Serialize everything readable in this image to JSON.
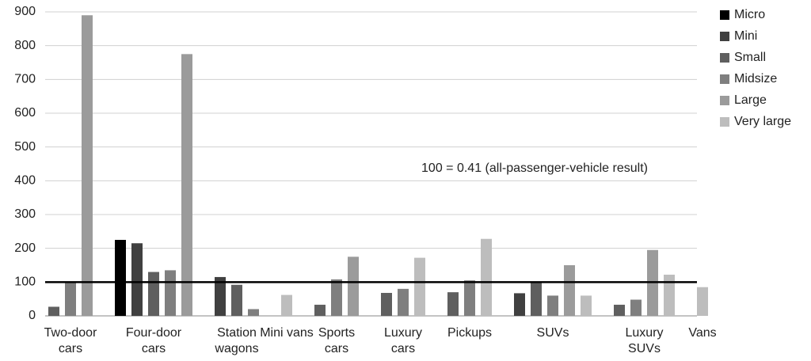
{
  "chart_data": {
    "type": "bar",
    "categories": [
      [
        "Two-door",
        "cars"
      ],
      [
        "Four-door",
        "cars"
      ],
      [
        "Station",
        "wagons"
      ],
      [
        "Mini vans"
      ],
      [
        "Sports",
        "cars"
      ],
      [
        "Luxury",
        "cars"
      ],
      [
        "Pickups"
      ],
      [
        "SUVs"
      ],
      [
        "Luxury",
        "SUVs"
      ],
      [
        "Vans"
      ]
    ],
    "series": [
      {
        "name": "Micro",
        "color": "#000000",
        "values": [
          null,
          225,
          null,
          null,
          null,
          null,
          null,
          null,
          null,
          null
        ]
      },
      {
        "name": "Mini",
        "color": "#404040",
        "values": [
          null,
          215,
          115,
          null,
          null,
          null,
          null,
          67,
          null,
          null
        ]
      },
      {
        "name": "Small",
        "color": "#5f5f5f",
        "values": [
          27,
          130,
          92,
          null,
          33,
          68,
          70,
          100,
          33,
          null
        ]
      },
      {
        "name": "Midsize",
        "color": "#7f7f7f",
        "values": [
          98,
          135,
          20,
          null,
          108,
          80,
          105,
          60,
          48,
          null
        ]
      },
      {
        "name": "Large",
        "color": "#9b9b9b",
        "values": [
          890,
          775,
          null,
          null,
          175,
          null,
          null,
          150,
          195,
          null
        ]
      },
      {
        "name": "Very large",
        "color": "#bdbdbd",
        "values": [
          null,
          null,
          null,
          62,
          null,
          172,
          228,
          60,
          122,
          85
        ]
      }
    ],
    "ylim": [
      0,
      900
    ],
    "yticks": [
      0,
      100,
      200,
      300,
      400,
      500,
      600,
      700,
      800,
      900
    ],
    "grid": true,
    "reference_line": 100,
    "annotation": "100 = 0.41 (all-passenger-vehicle result)",
    "legend": "right"
  }
}
